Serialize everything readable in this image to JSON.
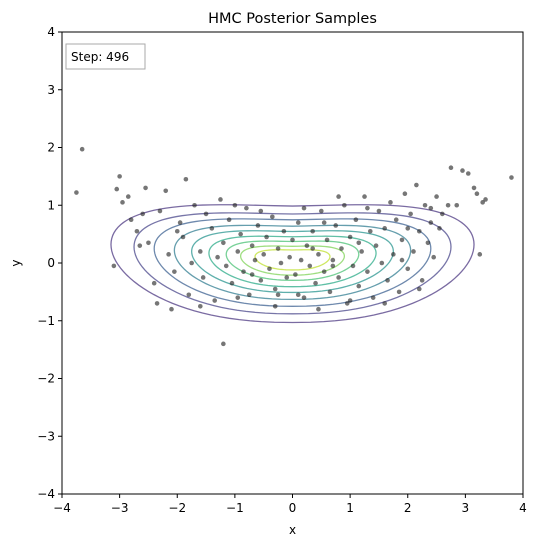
{
  "chart_data": {
    "type": "scatter",
    "title": "HMC Posterior Samples",
    "xlabel": "x",
    "ylabel": "y",
    "xlim": [
      -4,
      4
    ],
    "ylim": [
      -4,
      4
    ],
    "xticks": [
      -4,
      -3,
      -2,
      -1,
      0,
      1,
      2,
      3,
      4
    ],
    "yticks": [
      -4,
      -3,
      -2,
      -1,
      0,
      1,
      2,
      3,
      4
    ],
    "xtick_labels": [
      "−4",
      "−3",
      "−2",
      "−1",
      "0",
      "1",
      "2",
      "3",
      "4"
    ],
    "ytick_labels": [
      "−4",
      "−3",
      "−2",
      "−1",
      "0",
      "1",
      "2",
      "3",
      "4"
    ],
    "grid": false,
    "annotation": "Step: 496",
    "contour_colors": [
      "#46327e",
      "#424086",
      "#365c8d",
      "#2a788e",
      "#21918c",
      "#22a884",
      "#44bf70",
      "#7ad151",
      "#bddf26",
      "#fde725"
    ],
    "point_color": "#222222",
    "contour_levels": [
      {
        "rx": 3.15,
        "ry": 1.05,
        "cy": 0.02,
        "bend": 0.3
      },
      {
        "rx": 2.75,
        "ry": 0.9,
        "cy": 0.02,
        "bend": 0.26
      },
      {
        "rx": 2.4,
        "ry": 0.78,
        "cy": 0.03,
        "bend": 0.22
      },
      {
        "rx": 2.05,
        "ry": 0.66,
        "cy": 0.03,
        "bend": 0.19
      },
      {
        "rx": 1.75,
        "ry": 0.55,
        "cy": 0.04,
        "bend": 0.16
      },
      {
        "rx": 1.45,
        "ry": 0.45,
        "cy": 0.04,
        "bend": 0.13
      },
      {
        "rx": 1.15,
        "ry": 0.35,
        "cy": 0.05,
        "bend": 0.1
      },
      {
        "rx": 0.9,
        "ry": 0.26,
        "cy": 0.05,
        "bend": 0.07
      },
      {
        "rx": 0.65,
        "ry": 0.18,
        "cy": 0.06,
        "bend": 0.05
      }
    ],
    "points": [
      [
        -3.75,
        1.22
      ],
      [
        -3.65,
        1.97
      ],
      [
        -3.0,
        1.5
      ],
      [
        -3.1,
        -0.05
      ],
      [
        -3.05,
        1.28
      ],
      [
        -2.95,
        1.05
      ],
      [
        -2.85,
        1.15
      ],
      [
        -2.7,
        0.55
      ],
      [
        -2.6,
        0.85
      ],
      [
        -2.55,
        1.3
      ],
      [
        -2.5,
        0.35
      ],
      [
        -2.4,
        -0.35
      ],
      [
        -2.35,
        -0.7
      ],
      [
        -2.3,
        0.9
      ],
      [
        -2.2,
        1.25
      ],
      [
        -2.15,
        0.15
      ],
      [
        -2.05,
        -0.15
      ],
      [
        -1.85,
        1.45
      ],
      [
        -1.95,
        0.7
      ],
      [
        -1.9,
        0.45
      ],
      [
        -1.8,
        -0.55
      ],
      [
        -1.7,
        1.0
      ],
      [
        -1.6,
        0.2
      ],
      [
        -1.55,
        -0.25
      ],
      [
        -1.5,
        0.85
      ],
      [
        -1.4,
        0.6
      ],
      [
        -1.35,
        -0.65
      ],
      [
        -1.25,
        1.1
      ],
      [
        -1.2,
        0.35
      ],
      [
        -1.15,
        -0.05
      ],
      [
        -1.2,
        -1.4
      ],
      [
        -1.1,
        0.75
      ],
      [
        -1.05,
        -0.35
      ],
      [
        -0.95,
        0.2
      ],
      [
        -0.9,
        0.5
      ],
      [
        -0.85,
        -0.15
      ],
      [
        -0.8,
        0.95
      ],
      [
        -0.75,
        -0.55
      ],
      [
        -0.7,
        0.3
      ],
      [
        -0.65,
        0.05
      ],
      [
        -0.6,
        0.65
      ],
      [
        -0.55,
        -0.3
      ],
      [
        -0.5,
        0.15
      ],
      [
        -0.45,
        0.45
      ],
      [
        -0.4,
        -0.1
      ],
      [
        -0.35,
        0.8
      ],
      [
        -0.3,
        -0.45
      ],
      [
        -0.25,
        0.25
      ],
      [
        -0.2,
        0.0
      ],
      [
        -0.15,
        0.55
      ],
      [
        -0.1,
        -0.25
      ],
      [
        -0.05,
        0.1
      ],
      [
        0.0,
        0.4
      ],
      [
        0.05,
        -0.2
      ],
      [
        0.1,
        0.7
      ],
      [
        0.15,
        0.05
      ],
      [
        0.2,
        -0.6
      ],
      [
        0.25,
        0.3
      ],
      [
        0.3,
        -0.05
      ],
      [
        0.35,
        0.55
      ],
      [
        0.4,
        -0.35
      ],
      [
        0.45,
        0.15
      ],
      [
        0.5,
        0.9
      ],
      [
        0.55,
        -0.15
      ],
      [
        0.6,
        0.4
      ],
      [
        0.65,
        -0.5
      ],
      [
        0.7,
        0.05
      ],
      [
        0.75,
        0.65
      ],
      [
        0.8,
        -0.25
      ],
      [
        0.85,
        0.25
      ],
      [
        0.9,
        1.0
      ],
      [
        0.95,
        -0.7
      ],
      [
        1.0,
        0.45
      ],
      [
        1.05,
        -0.05
      ],
      [
        1.1,
        0.75
      ],
      [
        1.15,
        -0.4
      ],
      [
        1.2,
        0.2
      ],
      [
        1.25,
        1.15
      ],
      [
        1.3,
        -0.15
      ],
      [
        1.35,
        0.55
      ],
      [
        1.4,
        -0.6
      ],
      [
        1.45,
        0.3
      ],
      [
        1.5,
        0.9
      ],
      [
        1.55,
        0.0
      ],
      [
        1.6,
        0.6
      ],
      [
        1.65,
        -0.3
      ],
      [
        1.7,
        1.05
      ],
      [
        1.75,
        0.15
      ],
      [
        1.8,
        0.75
      ],
      [
        1.85,
        -0.5
      ],
      [
        1.9,
        0.4
      ],
      [
        1.95,
        1.2
      ],
      [
        2.0,
        -0.1
      ],
      [
        2.05,
        0.85
      ],
      [
        2.1,
        0.2
      ],
      [
        2.15,
        1.35
      ],
      [
        2.2,
        0.55
      ],
      [
        2.25,
        -0.3
      ],
      [
        2.3,
        1.0
      ],
      [
        2.35,
        0.35
      ],
      [
        2.4,
        0.95
      ],
      [
        2.45,
        0.1
      ],
      [
        2.5,
        1.15
      ],
      [
        2.55,
        0.6
      ],
      [
        2.6,
        0.85
      ],
      [
        2.7,
        1.0
      ],
      [
        2.75,
        1.65
      ],
      [
        2.85,
        1.0
      ],
      [
        2.95,
        1.6
      ],
      [
        3.05,
        1.55
      ],
      [
        3.15,
        1.3
      ],
      [
        3.2,
        1.2
      ],
      [
        3.25,
        0.15
      ],
      [
        3.35,
        1.1
      ],
      [
        3.3,
        1.05
      ],
      [
        3.8,
        1.48
      ],
      [
        2.4,
        0.7
      ],
      [
        2.2,
        -0.45
      ],
      [
        1.6,
        -0.7
      ],
      [
        0.45,
        -0.8
      ],
      [
        -0.3,
        -0.75
      ],
      [
        -1.6,
        -0.75
      ],
      [
        -2.1,
        -0.8
      ],
      [
        -2.8,
        0.75
      ],
      [
        -2.65,
        0.3
      ],
      [
        -1.0,
        1.0
      ],
      [
        0.8,
        1.15
      ],
      [
        1.3,
        0.95
      ],
      [
        -0.55,
        0.9
      ],
      [
        0.2,
        0.95
      ],
      [
        1.9,
        0.05
      ],
      [
        -1.75,
        0.0
      ],
      [
        -0.95,
        -0.6
      ],
      [
        0.1,
        -0.55
      ],
      [
        1.0,
        -0.65
      ],
      [
        2.0,
        0.6
      ],
      [
        -2.0,
        0.55
      ],
      [
        -1.3,
        0.1
      ],
      [
        -0.7,
        -0.2
      ],
      [
        0.35,
        0.25
      ],
      [
        0.7,
        -0.05
      ],
      [
        1.15,
        0.35
      ],
      [
        -0.25,
        -0.55
      ],
      [
        0.55,
        0.7
      ]
    ]
  }
}
